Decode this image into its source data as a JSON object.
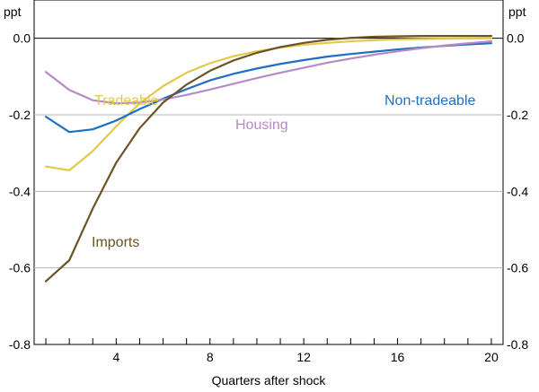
{
  "chart_data": {
    "type": "line",
    "xlabel": "Quarters after shock",
    "y_unit_left": "ppt",
    "y_unit_right": "ppt",
    "xlim": [
      0.5,
      20.5
    ],
    "ylim": [
      -0.8,
      0.1
    ],
    "x_ticks": [
      4,
      8,
      12,
      16,
      20
    ],
    "y_ticks": [
      0.0,
      -0.2,
      -0.4,
      -0.6,
      -0.8
    ],
    "y_tick_labels": [
      "0.0",
      "-0.2",
      "-0.4",
      "-0.6",
      "-0.8"
    ],
    "grid": "horizontal",
    "x": [
      1,
      2,
      3,
      4,
      5,
      6,
      7,
      8,
      9,
      10,
      11,
      12,
      13,
      14,
      15,
      16,
      17,
      18,
      19,
      20
    ],
    "series": [
      {
        "name": "Tradeable",
        "color": "#e3c94a",
        "values": [
          -0.335,
          -0.345,
          -0.295,
          -0.23,
          -0.17,
          -0.125,
          -0.09,
          -0.065,
          -0.047,
          -0.034,
          -0.024,
          -0.017,
          -0.012,
          -0.008,
          -0.005,
          -0.003,
          -0.002,
          -0.001,
          -0.0005,
          0.0
        ]
      },
      {
        "name": "Non-tradeable",
        "color": "#1f6fc0",
        "values": [
          -0.205,
          -0.245,
          -0.238,
          -0.215,
          -0.185,
          -0.158,
          -0.133,
          -0.11,
          -0.093,
          -0.079,
          -0.067,
          -0.057,
          -0.048,
          -0.041,
          -0.035,
          -0.029,
          -0.024,
          -0.02,
          -0.016,
          -0.013
        ]
      },
      {
        "name": "Housing",
        "color": "#b58bc4",
        "values": [
          -0.088,
          -0.135,
          -0.162,
          -0.17,
          -0.168,
          -0.16,
          -0.148,
          -0.134,
          -0.119,
          -0.104,
          -0.09,
          -0.077,
          -0.064,
          -0.053,
          -0.043,
          -0.034,
          -0.026,
          -0.019,
          -0.013,
          -0.008
        ]
      },
      {
        "name": "Imports",
        "color": "#6b5424",
        "values": [
          -0.635,
          -0.58,
          -0.445,
          -0.325,
          -0.235,
          -0.168,
          -0.121,
          -0.085,
          -0.058,
          -0.038,
          -0.023,
          -0.012,
          -0.004,
          0.001,
          0.004,
          0.005,
          0.006,
          0.006,
          0.006,
          0.006
        ]
      }
    ],
    "labels": {
      "tradeable": "Tradeable",
      "non_tradeable": "Non-tradeable",
      "housing": "Housing",
      "imports": "Imports"
    }
  }
}
